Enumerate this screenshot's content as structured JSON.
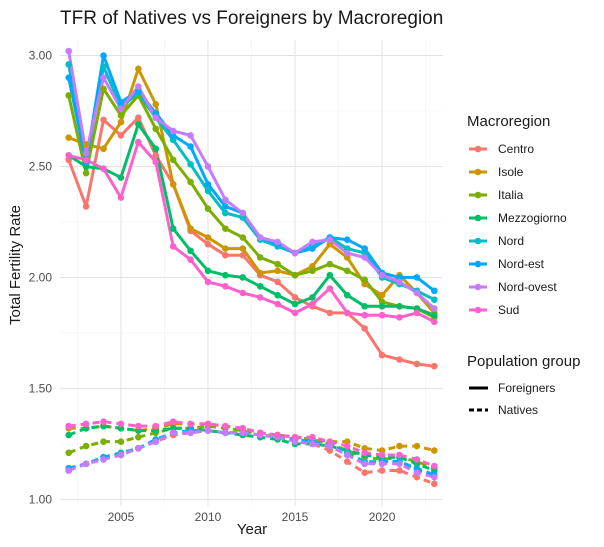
{
  "chart_data": {
    "type": "line",
    "title": "TFR of Natives vs Foreigners by Macroregion",
    "xlabel": "Year",
    "ylabel": "Total Fertility Rate",
    "xlim": [
      2001.5,
      2023.5
    ],
    "ylim": [
      0.97,
      3.07
    ],
    "x_ticks": [
      "2005",
      "2010",
      "2015",
      "2020"
    ],
    "y_ticks": [
      "1.00",
      "1.50",
      "2.00",
      "2.50",
      "3.00"
    ],
    "grid": true,
    "legend_position": "right",
    "legend_color": {
      "title": "Macroregion",
      "entries": [
        "Centro",
        "Isole",
        "Italia",
        "Mezzogiorno",
        "Nord",
        "Nord-est",
        "Nord-ovest",
        "Sud"
      ]
    },
    "legend_linetype": {
      "title": "Population group",
      "entries": [
        "Foreigners",
        "Natives"
      ]
    },
    "x": [
      2002,
      2003,
      2004,
      2005,
      2006,
      2007,
      2008,
      2009,
      2010,
      2011,
      2012,
      2013,
      2014,
      2015,
      2016,
      2017,
      2018,
      2019,
      2020,
      2021,
      2022,
      2023
    ],
    "series": [
      {
        "name": "Centro",
        "group": "Foreigners",
        "color": "#F8766D",
        "values": [
          2.53,
          2.32,
          2.71,
          2.64,
          2.72,
          2.55,
          2.42,
          2.21,
          2.15,
          2.1,
          2.1,
          2.01,
          1.98,
          1.91,
          1.87,
          1.84,
          1.84,
          1.77,
          1.65,
          1.63,
          1.61,
          1.6
        ]
      },
      {
        "name": "Isole",
        "group": "Foreigners",
        "color": "#CD9600",
        "values": [
          2.63,
          2.6,
          2.58,
          2.7,
          2.94,
          2.78,
          2.42,
          2.22,
          2.18,
          2.13,
          2.13,
          2.02,
          2.03,
          2.01,
          2.05,
          2.15,
          2.09,
          1.97,
          1.92,
          2.01,
          1.93,
          1.84
        ]
      },
      {
        "name": "Italia",
        "group": "Foreigners",
        "color": "#7CAE00",
        "values": [
          2.82,
          2.47,
          2.85,
          2.73,
          2.82,
          2.67,
          2.53,
          2.43,
          2.31,
          2.22,
          2.18,
          2.09,
          2.06,
          2.01,
          2.03,
          2.06,
          2.03,
          1.99,
          1.89,
          1.87,
          1.86,
          1.82
        ]
      },
      {
        "name": "Mezzogiorno",
        "group": "Foreigners",
        "color": "#00BE67",
        "values": [
          2.55,
          2.5,
          2.49,
          2.45,
          2.69,
          2.58,
          2.22,
          2.12,
          2.03,
          2.01,
          2.0,
          1.96,
          1.92,
          1.88,
          1.91,
          2.01,
          1.92,
          1.87,
          1.87,
          1.87,
          1.86,
          1.83
        ]
      },
      {
        "name": "Nord",
        "group": "Foreigners",
        "color": "#00BFC4",
        "values": [
          2.96,
          2.52,
          2.95,
          2.77,
          2.83,
          2.72,
          2.62,
          2.51,
          2.39,
          2.29,
          2.27,
          2.17,
          2.14,
          2.11,
          2.14,
          2.18,
          2.13,
          2.11,
          2.0,
          1.97,
          1.94,
          1.9
        ]
      },
      {
        "name": "Nord-est",
        "group": "Foreigners",
        "color": "#00A9FF",
        "values": [
          2.9,
          2.52,
          3.0,
          2.79,
          2.84,
          2.74,
          2.64,
          2.59,
          2.42,
          2.32,
          2.29,
          2.18,
          2.15,
          2.11,
          2.13,
          2.18,
          2.17,
          2.13,
          2.02,
          2.0,
          2.0,
          1.94
        ]
      },
      {
        "name": "Nord-ovest",
        "group": "Foreigners",
        "color": "#C77CFF",
        "values": [
          3.02,
          2.56,
          2.9,
          2.76,
          2.86,
          2.72,
          2.66,
          2.64,
          2.5,
          2.35,
          2.29,
          2.18,
          2.16,
          2.11,
          2.16,
          2.17,
          2.11,
          2.09,
          2.01,
          1.98,
          1.93,
          1.86
        ]
      },
      {
        "name": "Sud",
        "group": "Foreigners",
        "color": "#FF61CC",
        "values": [
          2.55,
          2.53,
          2.49,
          2.36,
          2.61,
          2.52,
          2.14,
          2.08,
          1.98,
          1.96,
          1.93,
          1.91,
          1.88,
          1.84,
          1.88,
          1.95,
          1.84,
          1.83,
          1.83,
          1.82,
          1.84,
          1.8
        ]
      },
      {
        "name": "Centro",
        "group": "Natives",
        "color": "#F8766D",
        "values": [
          1.13,
          1.16,
          1.18,
          1.2,
          1.23,
          1.26,
          1.29,
          1.3,
          1.31,
          1.3,
          1.3,
          1.29,
          1.28,
          1.27,
          1.25,
          1.22,
          1.17,
          1.12,
          1.13,
          1.13,
          1.1,
          1.07
        ]
      },
      {
        "name": "Isole",
        "group": "Natives",
        "color": "#CD9600",
        "values": [
          1.32,
          1.32,
          1.33,
          1.32,
          1.31,
          1.32,
          1.34,
          1.34,
          1.34,
          1.33,
          1.32,
          1.3,
          1.29,
          1.28,
          1.27,
          1.26,
          1.26,
          1.23,
          1.22,
          1.24,
          1.24,
          1.22
        ]
      },
      {
        "name": "Italia",
        "group": "Natives",
        "color": "#7CAE00",
        "values": [
          1.21,
          1.24,
          1.26,
          1.26,
          1.28,
          1.3,
          1.32,
          1.32,
          1.33,
          1.32,
          1.31,
          1.29,
          1.29,
          1.28,
          1.27,
          1.25,
          1.22,
          1.19,
          1.18,
          1.19,
          1.17,
          1.14
        ]
      },
      {
        "name": "Mezzogiorno",
        "group": "Natives",
        "color": "#00BE67",
        "values": [
          1.29,
          1.32,
          1.33,
          1.32,
          1.31,
          1.31,
          1.32,
          1.32,
          1.31,
          1.3,
          1.29,
          1.28,
          1.27,
          1.25,
          1.25,
          1.24,
          1.22,
          1.2,
          1.19,
          1.19,
          1.16,
          1.13
        ]
      },
      {
        "name": "Nord",
        "group": "Natives",
        "color": "#00BFC4",
        "values": [
          1.14,
          1.16,
          1.19,
          1.21,
          1.23,
          1.26,
          1.3,
          1.3,
          1.31,
          1.3,
          1.3,
          1.29,
          1.28,
          1.27,
          1.26,
          1.25,
          1.21,
          1.17,
          1.17,
          1.17,
          1.13,
          1.11
        ]
      },
      {
        "name": "Nord-est",
        "group": "Natives",
        "color": "#00A9FF",
        "values": [
          1.14,
          1.16,
          1.19,
          1.2,
          1.23,
          1.27,
          1.3,
          1.31,
          1.31,
          1.3,
          1.3,
          1.29,
          1.28,
          1.27,
          1.26,
          1.24,
          1.2,
          1.16,
          1.17,
          1.17,
          1.14,
          1.11
        ]
      },
      {
        "name": "Nord-ovest",
        "group": "Natives",
        "color": "#C77CFF",
        "values": [
          1.13,
          1.16,
          1.18,
          1.2,
          1.23,
          1.26,
          1.3,
          1.3,
          1.31,
          1.3,
          1.3,
          1.29,
          1.28,
          1.26,
          1.25,
          1.24,
          1.2,
          1.16,
          1.16,
          1.16,
          1.12,
          1.1
        ]
      },
      {
        "name": "Sud",
        "group": "Natives",
        "color": "#FF61CC",
        "values": [
          1.33,
          1.34,
          1.35,
          1.34,
          1.33,
          1.33,
          1.35,
          1.34,
          1.34,
          1.33,
          1.32,
          1.3,
          1.29,
          1.28,
          1.28,
          1.26,
          1.24,
          1.21,
          1.2,
          1.2,
          1.18,
          1.15
        ]
      }
    ]
  }
}
